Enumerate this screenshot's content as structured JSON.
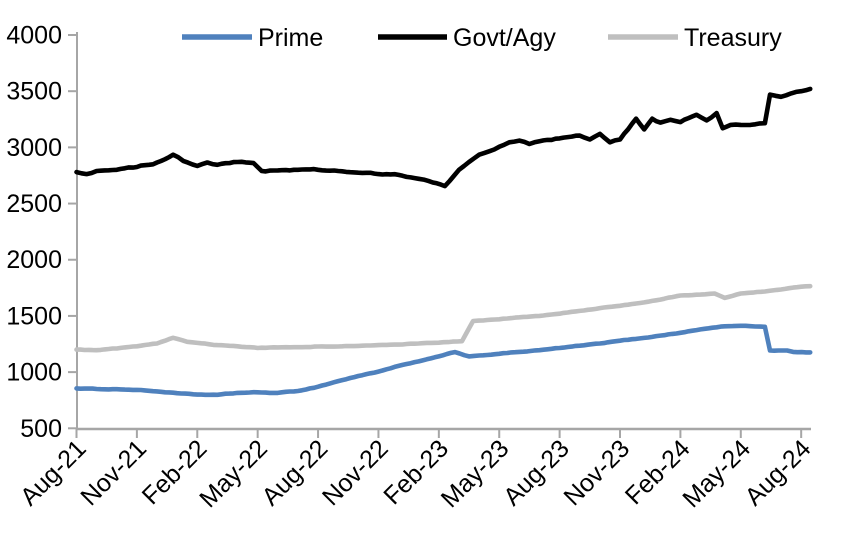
{
  "chart": {
    "background": "#ffffff",
    "axis_color": "#a6a6a6",
    "text_color": "#000000"
  },
  "legend": {
    "position": "top",
    "items": [
      {
        "label": "Prime",
        "color": "#4f81bd"
      },
      {
        "label": "Govt/Agy",
        "color": "#000000"
      },
      {
        "label": "Treasury",
        "color": "#bfbfbf"
      }
    ]
  },
  "chart_data": {
    "type": "line",
    "title": "",
    "xlabel": "",
    "ylabel": "",
    "grid": false,
    "legend_position": "top",
    "ylim": [
      500,
      4000
    ],
    "y_ticks": [
      500,
      1000,
      1500,
      2000,
      2500,
      3000,
      3500,
      4000
    ],
    "y_tick_labels": [
      "500",
      "1000",
      "1500",
      "2000",
      "2500",
      "3000",
      "3500",
      "4000"
    ],
    "x_unit": "month-index from Aug-21",
    "x_tick_months": [
      0,
      3,
      6,
      9,
      12,
      15,
      18,
      21,
      24,
      27,
      30,
      33,
      36
    ],
    "x_tick_labels": [
      "Aug-21",
      "Nov-21",
      "Feb-22",
      "May-22",
      "Aug-22",
      "Nov-22",
      "Feb-23",
      "May-23",
      "Aug-23",
      "Nov-23",
      "Feb-24",
      "May-24",
      "Aug-24"
    ],
    "series": [
      {
        "name": "Prime",
        "color": "#4f81bd",
        "noise": 3.5,
        "points": [
          [
            0,
            855
          ],
          [
            1,
            850
          ],
          [
            2,
            848
          ],
          [
            3,
            842
          ],
          [
            4,
            828
          ],
          [
            5,
            812
          ],
          [
            6,
            800
          ],
          [
            7,
            798
          ],
          [
            8,
            815
          ],
          [
            9,
            820
          ],
          [
            10,
            815
          ],
          [
            11,
            832
          ],
          [
            12,
            870
          ],
          [
            13,
            920
          ],
          [
            14,
            965
          ],
          [
            15,
            1005
          ],
          [
            16,
            1055
          ],
          [
            17,
            1095
          ],
          [
            18,
            1140
          ],
          [
            18.8,
            1178
          ],
          [
            19.5,
            1140
          ],
          [
            20,
            1148
          ],
          [
            21,
            1163
          ],
          [
            22,
            1180
          ],
          [
            23,
            1195
          ],
          [
            24,
            1215
          ],
          [
            25,
            1235
          ],
          [
            26,
            1255
          ],
          [
            27,
            1280
          ],
          [
            28,
            1300
          ],
          [
            29,
            1325
          ],
          [
            30,
            1350
          ],
          [
            31,
            1380
          ],
          [
            32,
            1405
          ],
          [
            33,
            1412
          ],
          [
            34.2,
            1403
          ],
          [
            34.45,
            1192
          ],
          [
            35.3,
            1192
          ],
          [
            35.6,
            1180
          ],
          [
            36.45,
            1175
          ]
        ]
      },
      {
        "name": "Govt/Agy",
        "color": "#000000",
        "noise": 9,
        "points": [
          [
            0,
            2780
          ],
          [
            0.5,
            2762
          ],
          [
            1,
            2790
          ],
          [
            2,
            2800
          ],
          [
            3,
            2825
          ],
          [
            4,
            2865
          ],
          [
            4.8,
            2935
          ],
          [
            5.3,
            2880
          ],
          [
            6,
            2835
          ],
          [
            6.5,
            2865
          ],
          [
            7,
            2845
          ],
          [
            8,
            2870
          ],
          [
            8.8,
            2860
          ],
          [
            9.2,
            2790
          ],
          [
            10,
            2795
          ],
          [
            11,
            2800
          ],
          [
            12,
            2800
          ],
          [
            13,
            2790
          ],
          [
            14,
            2775
          ],
          [
            15,
            2762
          ],
          [
            16,
            2755
          ],
          [
            17,
            2720
          ],
          [
            17.5,
            2700
          ],
          [
            18.3,
            2655
          ],
          [
            19,
            2800
          ],
          [
            19.5,
            2870
          ],
          [
            20,
            2935
          ],
          [
            20.5,
            2965
          ],
          [
            21,
            3005
          ],
          [
            21.5,
            3045
          ],
          [
            22,
            3060
          ],
          [
            22.5,
            3030
          ],
          [
            23,
            3055
          ],
          [
            24,
            3080
          ],
          [
            25,
            3105
          ],
          [
            25.5,
            3070
          ],
          [
            26,
            3120
          ],
          [
            26.5,
            3045
          ],
          [
            27,
            3070
          ],
          [
            27.8,
            3255
          ],
          [
            28.2,
            3160
          ],
          [
            28.6,
            3255
          ],
          [
            29,
            3220
          ],
          [
            29.5,
            3245
          ],
          [
            30,
            3225
          ],
          [
            30.8,
            3290
          ],
          [
            31.3,
            3240
          ],
          [
            31.8,
            3305
          ],
          [
            32.1,
            3170
          ],
          [
            32.5,
            3200
          ],
          [
            33,
            3200
          ],
          [
            34.2,
            3215
          ],
          [
            34.45,
            3470
          ],
          [
            35,
            3450
          ],
          [
            35.5,
            3480
          ],
          [
            36,
            3500
          ],
          [
            36.45,
            3520
          ]
        ]
      },
      {
        "name": "Treasury",
        "color": "#bfbfbf",
        "noise": 3.5,
        "points": [
          [
            0,
            1200
          ],
          [
            1,
            1195
          ],
          [
            2,
            1210
          ],
          [
            3,
            1230
          ],
          [
            4,
            1255
          ],
          [
            4.8,
            1305
          ],
          [
            5.5,
            1270
          ],
          [
            6,
            1260
          ],
          [
            7,
            1240
          ],
          [
            8,
            1230
          ],
          [
            9,
            1215
          ],
          [
            10,
            1220
          ],
          [
            11,
            1222
          ],
          [
            12,
            1228
          ],
          [
            13,
            1228
          ],
          [
            14,
            1233
          ],
          [
            15,
            1240
          ],
          [
            16,
            1245
          ],
          [
            17,
            1255
          ],
          [
            18,
            1262
          ],
          [
            19.15,
            1275
          ],
          [
            19.7,
            1455
          ],
          [
            20,
            1458
          ],
          [
            21,
            1470
          ],
          [
            22,
            1488
          ],
          [
            23,
            1500
          ],
          [
            24,
            1520
          ],
          [
            25,
            1545
          ],
          [
            26,
            1570
          ],
          [
            27,
            1590
          ],
          [
            28,
            1615
          ],
          [
            29,
            1645
          ],
          [
            30,
            1682
          ],
          [
            31,
            1690
          ],
          [
            31.7,
            1700
          ],
          [
            32.2,
            1660
          ],
          [
            33,
            1700
          ],
          [
            34,
            1715
          ],
          [
            35,
            1735
          ],
          [
            36,
            1760
          ],
          [
            36.45,
            1765
          ]
        ]
      }
    ]
  }
}
